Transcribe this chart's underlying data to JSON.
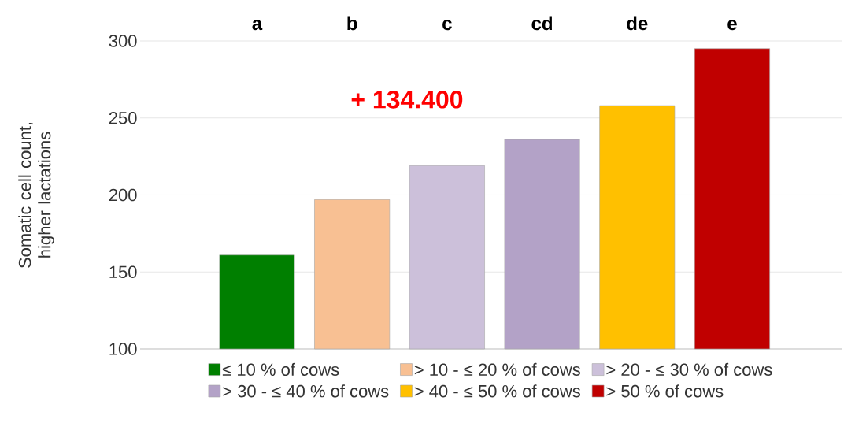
{
  "chart_data": {
    "type": "bar",
    "ylabel": "Somatic cell count, higher lactations",
    "categories": [
      null,
      null,
      null,
      null,
      null,
      null
    ],
    "series": [
      {
        "name": "≤ 10 % of cows",
        "color": "#007f00",
        "values": [
          161,
          null,
          null,
          null,
          null,
          null
        ]
      },
      {
        "name": "> 10 - ≤ 20 % of cows",
        "color": "#f8c093",
        "values": [
          null,
          197,
          null,
          null,
          null,
          null
        ]
      },
      {
        "name": "> 20 - ≤ 30 % of cows",
        "color": "#ccc0da",
        "values": [
          null,
          null,
          219,
          null,
          null,
          null
        ]
      },
      {
        "name": "> 30 - ≤ 40 % of cows",
        "color": "#b3a2c7",
        "values": [
          null,
          null,
          null,
          236,
          null,
          null
        ]
      },
      {
        "name": "> 40 - ≤ 50 % of cows",
        "color": "#ffc000",
        "values": [
          null,
          null,
          null,
          null,
          258,
          null
        ]
      },
      {
        "name": "> 50 % of cows",
        "color": "#c00000",
        "values": [
          null,
          null,
          null,
          null,
          null,
          295
        ]
      }
    ],
    "ylim": [
      100,
      300
    ],
    "yticks": [
      100,
      150,
      200,
      250,
      300
    ],
    "grid": "y",
    "legend": "bottom",
    "tick_labels": "y",
    "annotations": [
      "a",
      "b",
      "c",
      "cd",
      "de",
      "e",
      "+ 134.400"
    ]
  }
}
